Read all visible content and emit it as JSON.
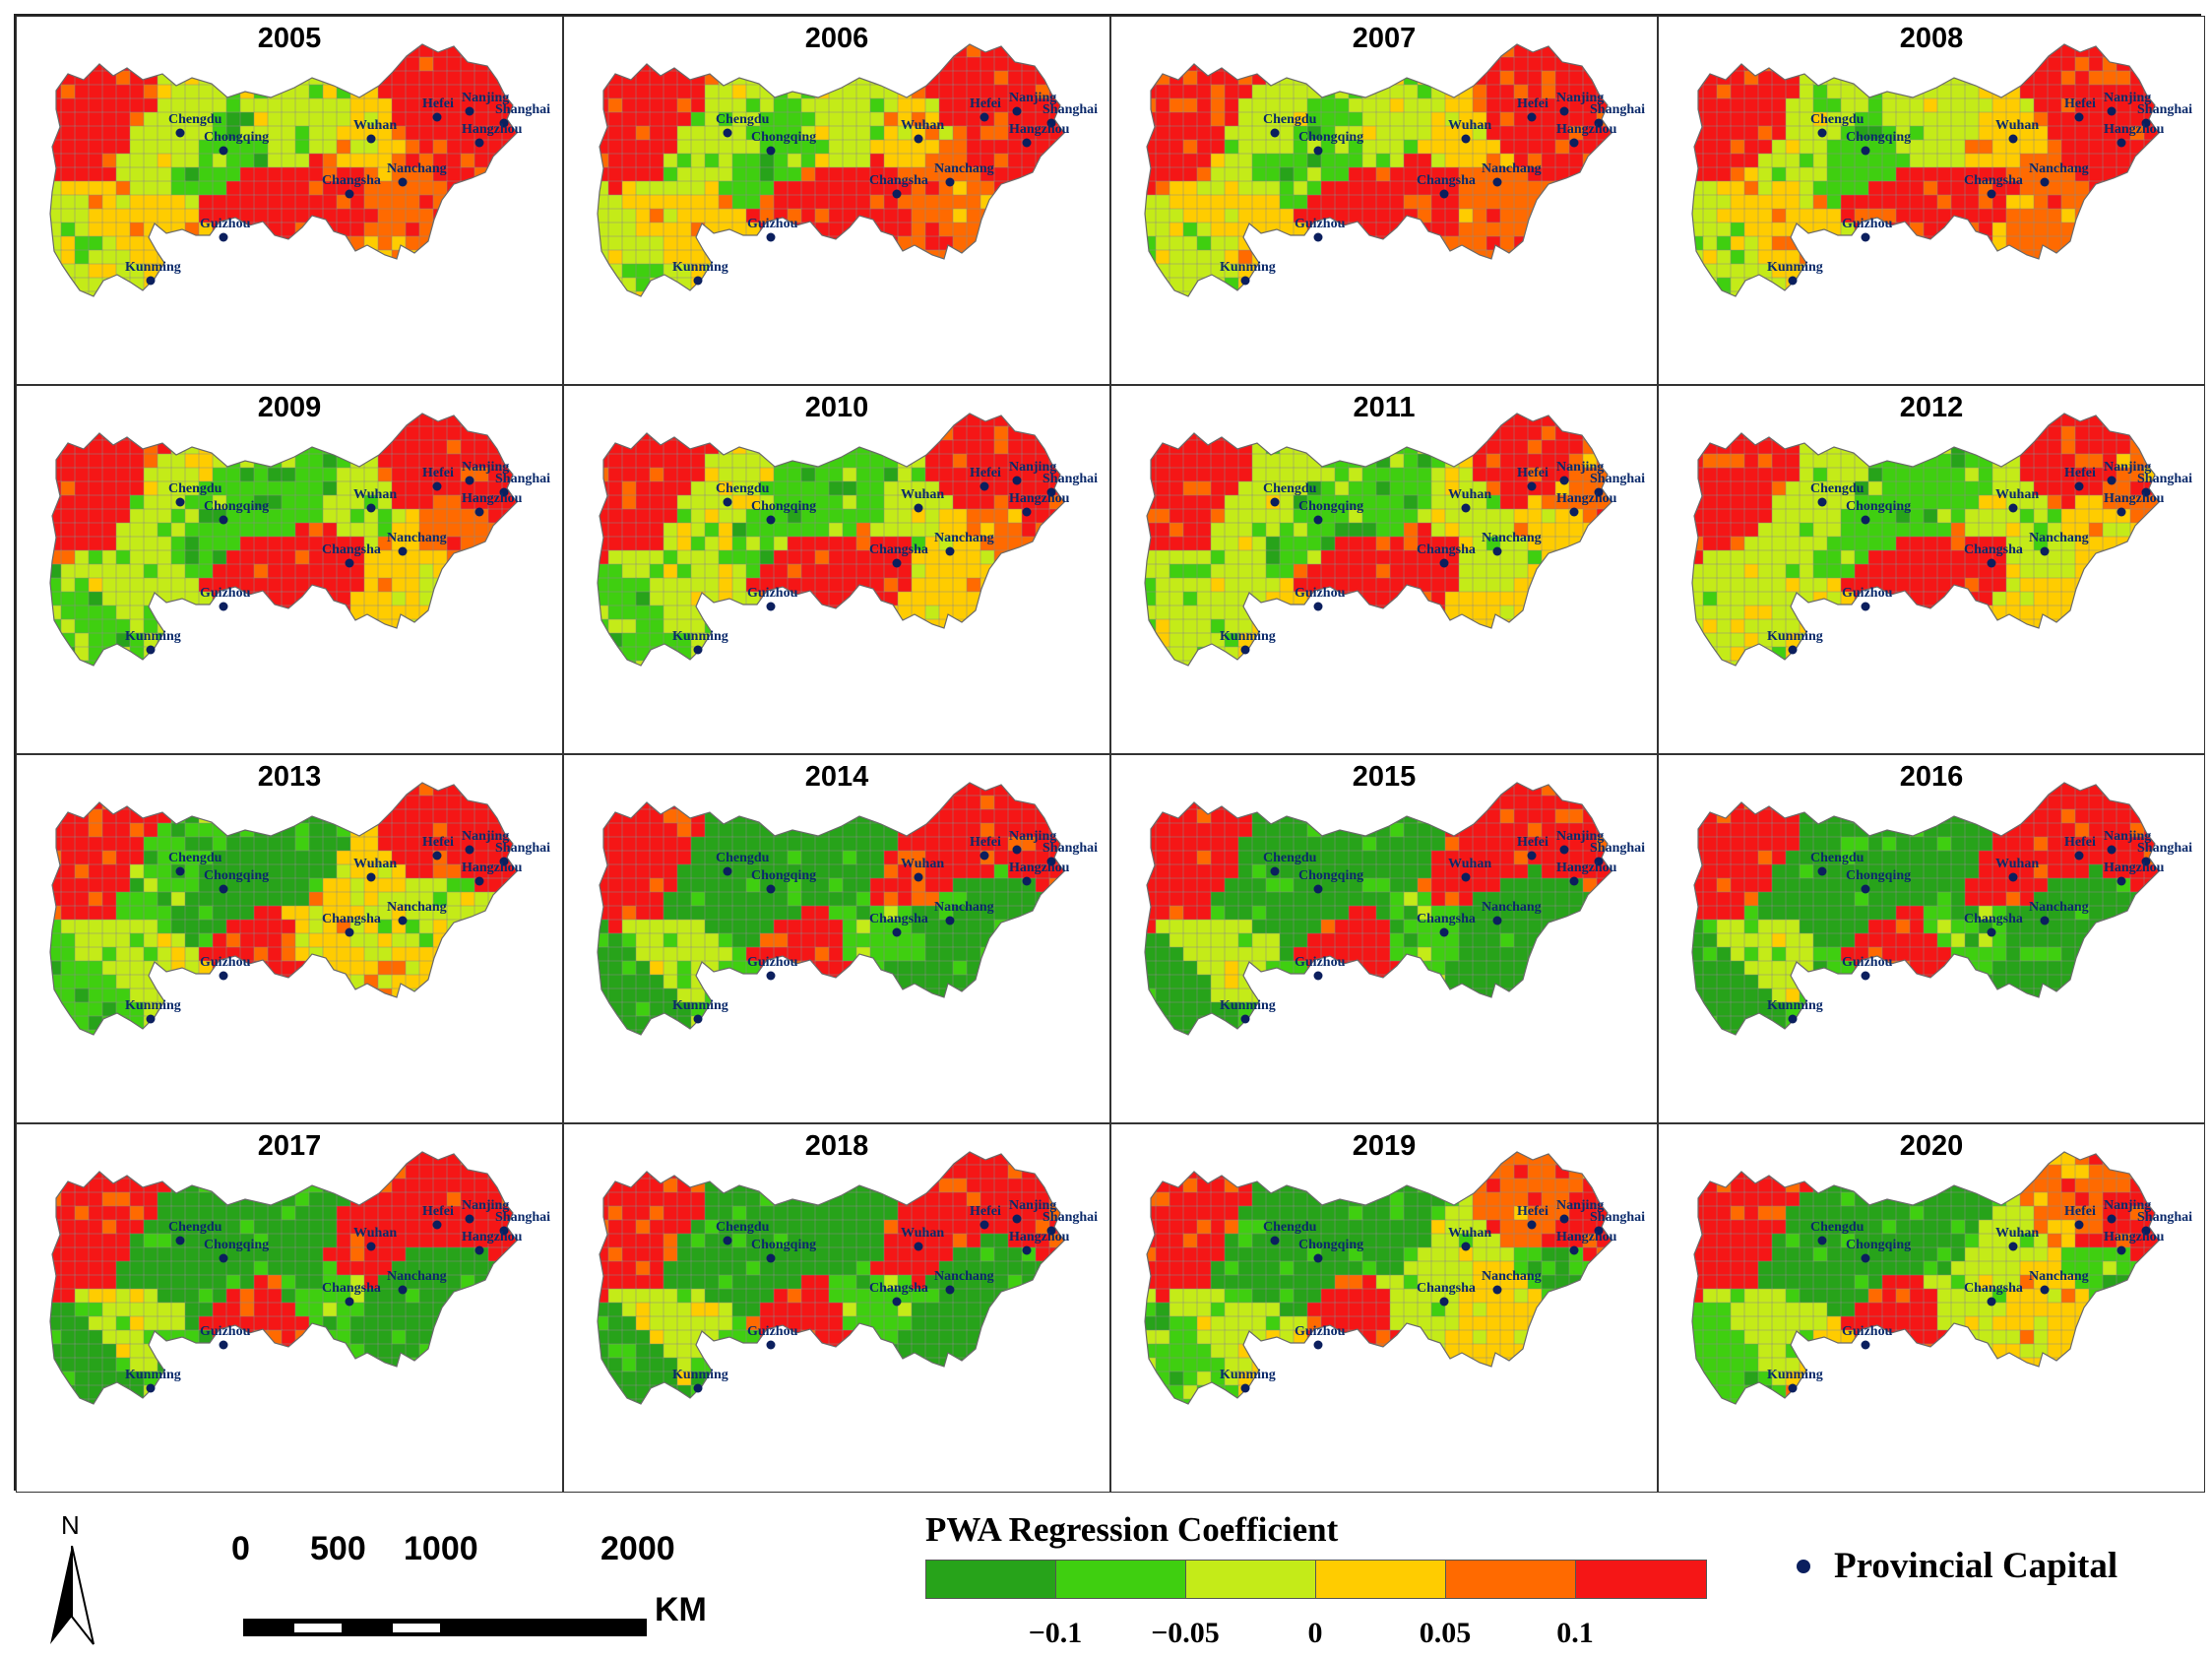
{
  "figure": {
    "panels": [
      {
        "year": "2005",
        "key": "A"
      },
      {
        "year": "2006",
        "key": "A"
      },
      {
        "year": "2007",
        "key": "A"
      },
      {
        "year": "2008",
        "key": "A"
      },
      {
        "year": "2009",
        "key": "B"
      },
      {
        "year": "2010",
        "key": "B"
      },
      {
        "year": "2011",
        "key": "C"
      },
      {
        "year": "2012",
        "key": "C"
      },
      {
        "year": "2013",
        "key": "D"
      },
      {
        "year": "2014",
        "key": "E"
      },
      {
        "year": "2015",
        "key": "E"
      },
      {
        "year": "2016",
        "key": "E"
      },
      {
        "year": "2017",
        "key": "E"
      },
      {
        "year": "2018",
        "key": "E"
      },
      {
        "year": "2019",
        "key": "F"
      },
      {
        "year": "2020",
        "key": "F"
      }
    ],
    "cities": [
      "Chengdu",
      "Chongqing",
      "Guizhou",
      "Kunming",
      "Wuhan",
      "Changsha",
      "Nanchang",
      "Hefei",
      "Nanjing",
      "Shanghai",
      "Hangzhou"
    ],
    "palette": {
      "dark_green": "#27a31a",
      "green": "#3fcf10",
      "yellow_green": "#c4eb18",
      "yellow": "#ffcc00",
      "orange": "#ff6a00",
      "red": "#f51616",
      "boundary": "#8a8a8a",
      "capital_dot": "#0b1f5e"
    }
  },
  "legend": {
    "title": "PWA Regression Coefficient",
    "colors": [
      "#27a31a",
      "#3fcf10",
      "#c4eb18",
      "#ffcc00",
      "#ff6a00",
      "#f51616"
    ],
    "ticks": [
      "−0.1",
      "−0.05",
      "0",
      "0.05",
      "0.1"
    ],
    "capital_label": "Provincial Capital"
  },
  "scale": {
    "ticks": [
      "0",
      "500",
      "1000",
      "2000"
    ],
    "unit": "KM",
    "north": "N"
  }
}
